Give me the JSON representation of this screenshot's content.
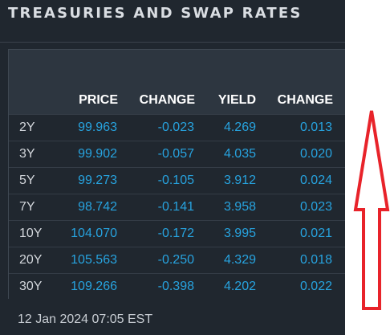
{
  "header": {
    "title": "TREASURIES AND SWAP RATES"
  },
  "table": {
    "columns": [
      "PRICE",
      "CHANGE",
      "YIELD",
      "CHANGE"
    ],
    "rows": [
      {
        "tenor": "2Y",
        "price": "99.963",
        "price_change": "-0.023",
        "yield": "4.269",
        "yield_change": "0.013"
      },
      {
        "tenor": "3Y",
        "price": "99.902",
        "price_change": "-0.057",
        "yield": "4.035",
        "yield_change": "0.020"
      },
      {
        "tenor": "5Y",
        "price": "99.273",
        "price_change": "-0.105",
        "yield": "3.912",
        "yield_change": "0.024"
      },
      {
        "tenor": "7Y",
        "price": "98.742",
        "price_change": "-0.141",
        "yield": "3.958",
        "yield_change": "0.023"
      },
      {
        "tenor": "10Y",
        "price": "104.070",
        "price_change": "-0.172",
        "yield": "3.995",
        "yield_change": "0.021"
      },
      {
        "tenor": "20Y",
        "price": "105.563",
        "price_change": "-0.250",
        "yield": "4.329",
        "yield_change": "0.018"
      },
      {
        "tenor": "30Y",
        "price": "109.266",
        "price_change": "-0.398",
        "yield": "4.202",
        "yield_change": "0.022"
      }
    ]
  },
  "footer": {
    "timestamp": "12 Jan 2024 07:05 EST"
  },
  "annotation": {
    "icon": "up-arrow-icon",
    "color": "#e8232a"
  },
  "colors": {
    "panel_background": "#20272f",
    "header_background": "#2d3640",
    "value_blue": "#27a3df",
    "title_text": "#d9dde2"
  }
}
